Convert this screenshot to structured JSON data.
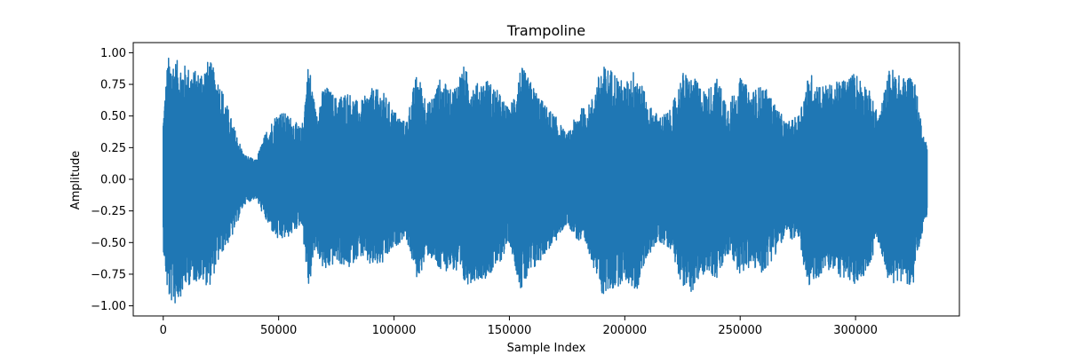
{
  "chart_data": {
    "type": "line",
    "title": "Trampoline",
    "xlabel": "Sample Index",
    "ylabel": "Amplitude",
    "xlim": [
      -13000,
      345000
    ],
    "ylim": [
      -1.08,
      1.08
    ],
    "xticks": [
      0,
      50000,
      100000,
      150000,
      200000,
      250000,
      300000
    ],
    "xtick_labels": [
      "0",
      "50000",
      "100000",
      "150000",
      "200000",
      "250000",
      "300000"
    ],
    "yticks": [
      1.0,
      0.75,
      0.5,
      0.25,
      0.0,
      -0.25,
      -0.5,
      -0.75,
      -1.0
    ],
    "ytick_labels": [
      "1.00",
      "0.75",
      "0.50",
      "0.25",
      "0.00",
      "−0.25",
      "−0.50",
      "−0.75",
      "−1.00"
    ],
    "grid": false,
    "legend": "none",
    "series": [
      {
        "color": "#1f77b4",
        "n_samples": 331000,
        "envelope": {
          "x": [
            0,
            2000,
            5000,
            10000,
            15000,
            20000,
            25000,
            30000,
            35000,
            40000,
            45000,
            50000,
            55000,
            60000,
            63000,
            66000,
            70000,
            75000,
            80000,
            85000,
            90000,
            95000,
            100000,
            105000,
            110000,
            115000,
            120000,
            125000,
            130000,
            135000,
            140000,
            145000,
            150000,
            155000,
            160000,
            165000,
            170000,
            175000,
            180000,
            185000,
            190000,
            195000,
            200000,
            205000,
            210000,
            215000,
            220000,
            225000,
            230000,
            235000,
            240000,
            245000,
            250000,
            255000,
            260000,
            265000,
            270000,
            275000,
            280000,
            285000,
            290000,
            295000,
            300000,
            305000,
            310000,
            315000,
            320000,
            325000,
            330000
          ],
          "upper": [
            0.5,
            0.97,
            0.95,
            0.9,
            0.85,
            0.95,
            0.75,
            0.45,
            0.2,
            0.15,
            0.4,
            0.55,
            0.5,
            0.4,
            0.95,
            0.55,
            0.75,
            0.65,
            0.7,
            0.6,
            0.72,
            0.7,
            0.55,
            0.45,
            0.85,
            0.6,
            0.8,
            0.7,
            0.9,
            0.75,
            0.8,
            0.7,
            0.55,
            0.9,
            0.75,
            0.6,
            0.5,
            0.35,
            0.55,
            0.6,
            0.9,
            0.87,
            0.75,
            0.9,
            0.6,
            0.5,
            0.55,
            0.85,
            0.8,
            0.7,
            0.8,
            0.6,
            0.8,
            0.7,
            0.75,
            0.6,
            0.45,
            0.5,
            0.85,
            0.75,
            0.75,
            0.8,
            0.85,
            0.75,
            0.5,
            0.9,
            0.8,
            0.85,
            0.3
          ],
          "lower": [
            -0.55,
            -0.95,
            -1.0,
            -0.85,
            -0.8,
            -0.85,
            -0.6,
            -0.45,
            -0.2,
            -0.15,
            -0.35,
            -0.5,
            -0.45,
            -0.35,
            -0.88,
            -0.55,
            -0.75,
            -0.65,
            -0.72,
            -0.6,
            -0.7,
            -0.68,
            -0.55,
            -0.45,
            -0.8,
            -0.6,
            -0.75,
            -0.7,
            -0.85,
            -0.8,
            -0.78,
            -0.7,
            -0.5,
            -0.88,
            -0.75,
            -0.6,
            -0.5,
            -0.35,
            -0.5,
            -0.6,
            -0.92,
            -0.88,
            -0.8,
            -0.9,
            -0.6,
            -0.5,
            -0.55,
            -0.85,
            -0.9,
            -0.72,
            -0.8,
            -0.6,
            -0.75,
            -0.7,
            -0.75,
            -0.6,
            -0.45,
            -0.5,
            -0.88,
            -0.75,
            -0.72,
            -0.8,
            -0.85,
            -0.72,
            -0.5,
            -0.85,
            -0.8,
            -0.85,
            -0.3
          ]
        }
      }
    ]
  }
}
